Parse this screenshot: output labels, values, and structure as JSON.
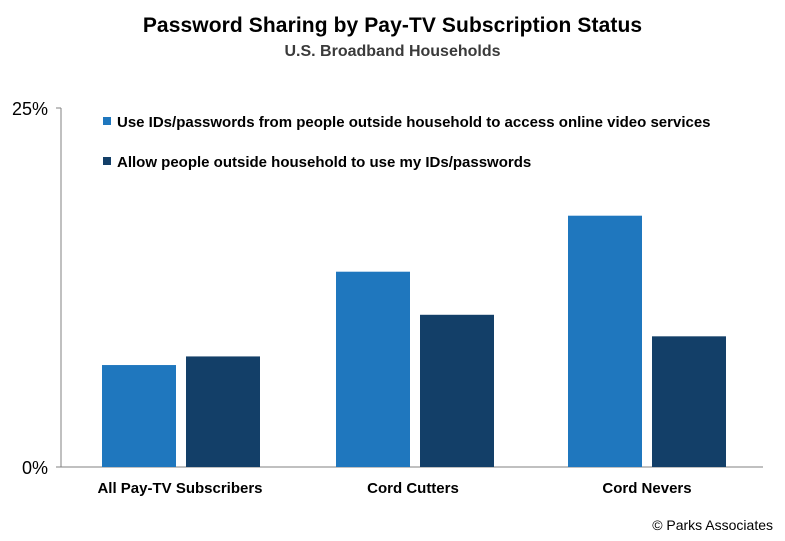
{
  "chart_data": {
    "type": "bar",
    "title": "Password Sharing by Pay-TV Subscription Status",
    "subtitle": "U.S. Broadband Households",
    "categories": [
      "All Pay-TV Subscribers",
      "Cord Cutters",
      "Cord Nevers"
    ],
    "series": [
      {
        "name": "Use IDs/passwords from people outside household to access online video services",
        "values": [
          7.1,
          13.6,
          17.5
        ],
        "color": "#1f77be"
      },
      {
        "name": "Allow people outside household to use my IDs/passwords",
        "values": [
          7.7,
          10.6,
          9.1
        ],
        "color": "#133f68"
      }
    ],
    "yticks": [
      "0%",
      "25%"
    ],
    "ylim": [
      0,
      25
    ],
    "grid": false,
    "legend_position": "top-left-inside"
  },
  "credit": "© Parks Associates"
}
